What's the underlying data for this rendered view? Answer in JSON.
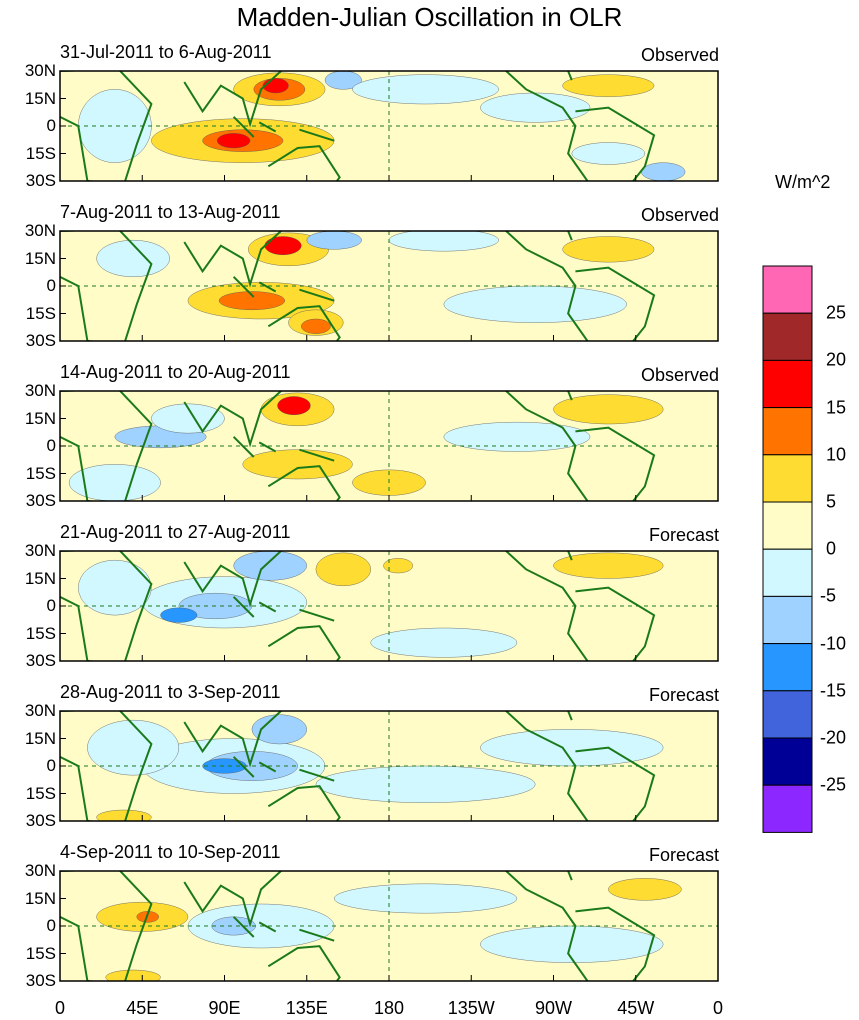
{
  "title": "Madden-Julian Oscillation in OLR",
  "panels": [
    {
      "dates": "31-Jul-2011 to 6-Aug-2011",
      "type": "Observed"
    },
    {
      "dates": "7-Aug-2011 to 13-Aug-2011",
      "type": "Observed"
    },
    {
      "dates": "14-Aug-2011 to 20-Aug-2011",
      "type": "Observed"
    },
    {
      "dates": "21-Aug-2011 to 27-Aug-2011",
      "type": "Forecast"
    },
    {
      "dates": "28-Aug-2011 to 3-Sep-2011",
      "type": "Forecast"
    },
    {
      "dates": "4-Sep-2011 to 10-Sep-2011",
      "type": "Forecast"
    }
  ],
  "lat_labels": [
    "30N",
    "15N",
    "0",
    "15S",
    "30S"
  ],
  "lon_labels": [
    "0",
    "45E",
    "90E",
    "135E",
    "180",
    "135W",
    "90W",
    "45W",
    "0"
  ],
  "colorbar": {
    "unit": "W/m^2",
    "labels": [
      "25",
      "20",
      "15",
      "10",
      "5",
      "0",
      "-5",
      "-10",
      "-15",
      "-20",
      "-25"
    ],
    "colors": [
      "#ff66b3",
      "#a02828",
      "#ff0000",
      "#ff7400",
      "#ffdc32",
      "#fffcc8",
      "#d2f8ff",
      "#a0d2ff",
      "#2896ff",
      "#4164dc",
      "#000096",
      "#8c28ff"
    ]
  }
}
